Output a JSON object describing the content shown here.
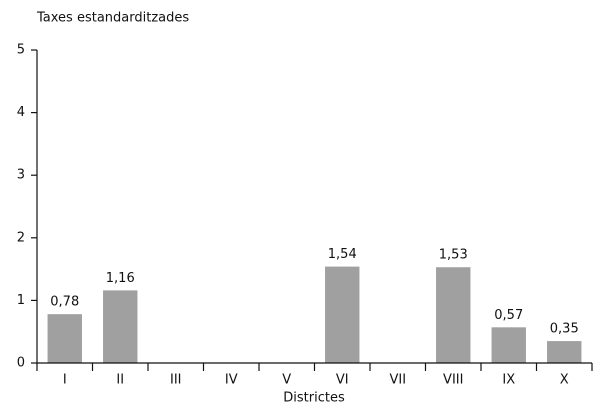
{
  "chart_data": {
    "type": "bar",
    "title": "Taxes estandarditzades",
    "x_label": "Districtes",
    "categories": [
      "I",
      "II",
      "III",
      "IV",
      "V",
      "VI",
      "VII",
      "VIII",
      "IX",
      "X"
    ],
    "values": [
      0.78,
      1.16,
      null,
      null,
      null,
      1.54,
      null,
      1.53,
      0.57,
      0.35
    ],
    "value_labels": [
      "0,78",
      "1,16",
      null,
      null,
      null,
      "1,54",
      null,
      "1,53",
      "0,57",
      "0,35"
    ],
    "color": "#a0a0a0",
    "ylim": [
      0,
      5
    ],
    "yticks": [
      0,
      1,
      2,
      3,
      4,
      5
    ],
    "grid": false
  }
}
